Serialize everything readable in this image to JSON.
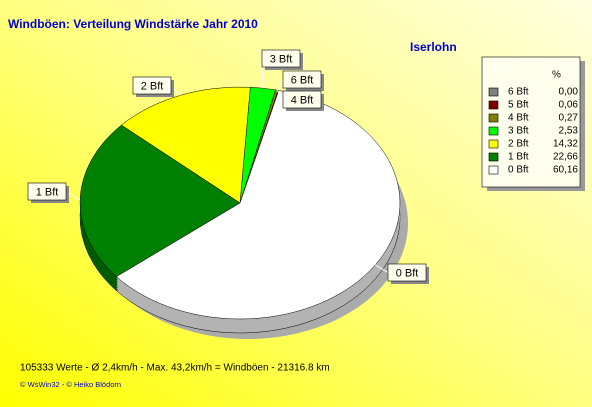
{
  "chart_data": {
    "type": "pie",
    "title": "Windböen: Verteilung Windstärke  Jahr 2010",
    "subtitle": "Iserlohn",
    "legend_title": "%",
    "categories": [
      "6 Bft",
      "5 Bft",
      "4 Bft",
      "3 Bft",
      "2 Bft",
      "1 Bft",
      "0 Bft"
    ],
    "values": [
      0.0,
      0.06,
      0.27,
      2.53,
      14.32,
      22.66,
      60.16
    ],
    "value_labels": [
      "0,00",
      "0,06",
      "0,27",
      "2,53",
      "14,32",
      "22,66",
      "60,16"
    ],
    "colors": [
      "#808080",
      "#800000",
      "#808000",
      "#00ff00",
      "#ffff00",
      "#008000",
      "#ffffff"
    ],
    "legend": "upper right",
    "footer": "105333 Werte   -   Ø 2,4km/h  -  Max. 43,2km/h = Windböen   -    21316.8 km",
    "credits": "© WsWin32  -  © Heiko Blödorn"
  }
}
